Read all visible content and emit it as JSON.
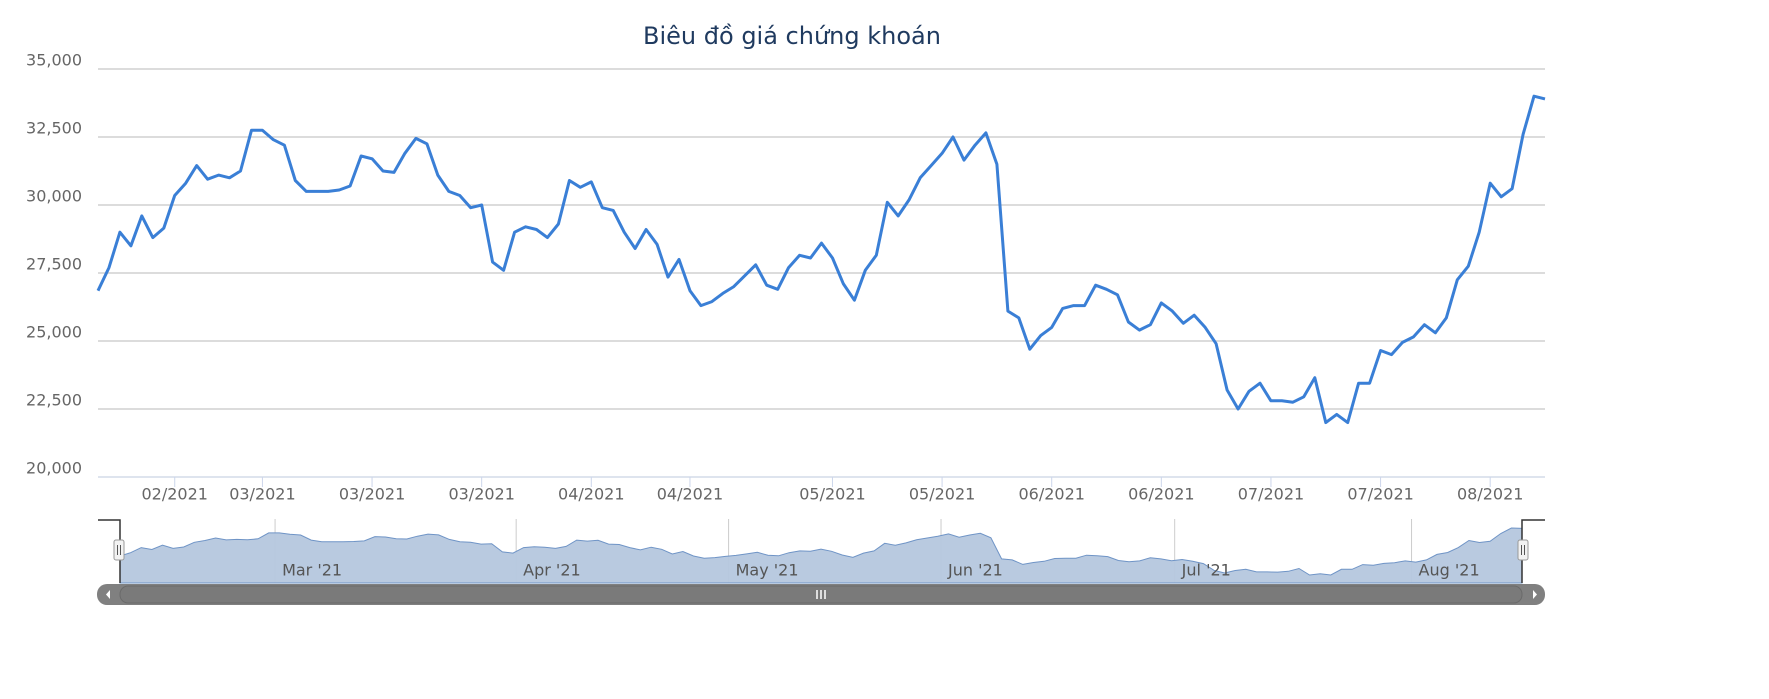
{
  "chart_data": {
    "type": "line",
    "title": "Biêu đồ giá chứng khoán",
    "categories": [
      null,
      null,
      null,
      null,
      null,
      null,
      null,
      "02/2021",
      null,
      null,
      null,
      null,
      null,
      null,
      null,
      "03/2021",
      null,
      null,
      null,
      null,
      null,
      null,
      null,
      null,
      null,
      "03/2021",
      null,
      null,
      null,
      null,
      null,
      null,
      null,
      null,
      null,
      "03/2021",
      null,
      null,
      null,
      null,
      null,
      null,
      null,
      null,
      null,
      "04/2021",
      null,
      null,
      null,
      null,
      null,
      null,
      null,
      null,
      "04/2021",
      null,
      null,
      null,
      null,
      null,
      null,
      null,
      null,
      null,
      null,
      null,
      null,
      "05/2021",
      null,
      null,
      null,
      null,
      null,
      null,
      null,
      null,
      null,
      "05/2021",
      null,
      null,
      null,
      null,
      null,
      null,
      null,
      null,
      null,
      "06/2021",
      null,
      null,
      null,
      null,
      null,
      null,
      null,
      null,
      null,
      "06/2021",
      null,
      null,
      null,
      null,
      null,
      null,
      null,
      null,
      null,
      "07/2021",
      null,
      null,
      null,
      null,
      null,
      null,
      null,
      null,
      null,
      "07/2021",
      null,
      null,
      null,
      null,
      null,
      null,
      null,
      null,
      null,
      "08/2021",
      null,
      null,
      null,
      null,
      null
    ],
    "series": [
      {
        "color": "#3a7fd6",
        "values": [
          26850,
          27700,
          29000,
          28500,
          29600,
          28800,
          29150,
          30350,
          30800,
          31450,
          30950,
          31100,
          31000,
          31250,
          32750,
          32750,
          32400,
          32200,
          30900,
          30500,
          30500,
          30500,
          30550,
          30700,
          31800,
          31700,
          31250,
          31200,
          31900,
          32450,
          32250,
          31100,
          30500,
          30350,
          29900,
          30000,
          27900,
          27600,
          29000,
          29200,
          29100,
          28800,
          29300,
          30900,
          30650,
          30850,
          29900,
          29800,
          29000,
          28400,
          29100,
          28550,
          27350,
          28000,
          26850,
          26300,
          26450,
          26750,
          27000,
          27400,
          27800,
          27050,
          26900,
          27700,
          28150,
          28050,
          28600,
          28050,
          27100,
          26500,
          27600,
          28150,
          30100,
          29600,
          30200,
          31000,
          31450,
          31900,
          32500,
          31650,
          32200,
          32650,
          31500,
          26100,
          25850,
          24700,
          25200,
          25500,
          26200,
          26300,
          26300,
          27050,
          26900,
          26700,
          25700,
          25400,
          25600,
          26400,
          26100,
          25650,
          25950,
          25500,
          24900,
          23200,
          22500,
          23150,
          23450,
          22800,
          22800,
          22750,
          22950,
          23650,
          22000,
          22300,
          22000,
          23450,
          23450,
          24650,
          24500,
          24950,
          25150,
          25600,
          25300,
          25850,
          27250,
          27750,
          29000,
          30800,
          30300,
          30600,
          32600,
          34000,
          33900
        ]
      }
    ],
    "ylim": [
      20000,
      35000
    ],
    "yticks": [
      {
        "value": 20000,
        "label": "20,000"
      },
      {
        "value": 22500,
        "label": "22,500"
      },
      {
        "value": 25000,
        "label": "25,000"
      },
      {
        "value": 27500,
        "label": "27,500"
      },
      {
        "value": 30000,
        "label": "30,000"
      },
      {
        "value": 32500,
        "label": "32,500"
      },
      {
        "value": 35000,
        "label": "35,000"
      }
    ],
    "grid": true,
    "navigator": {
      "color": "#b5c7de",
      "xticks": [
        {
          "value": 14.6,
          "label": "Mar '21"
        },
        {
          "value": 37.3,
          "label": "Apr '21"
        },
        {
          "value": 57.3,
          "label": "May '21"
        },
        {
          "value": 77.3,
          "label": "Jun '21"
        },
        {
          "value": 99.3,
          "label": "Jul '21"
        },
        {
          "value": 121.6,
          "label": "Aug '21"
        }
      ]
    }
  }
}
